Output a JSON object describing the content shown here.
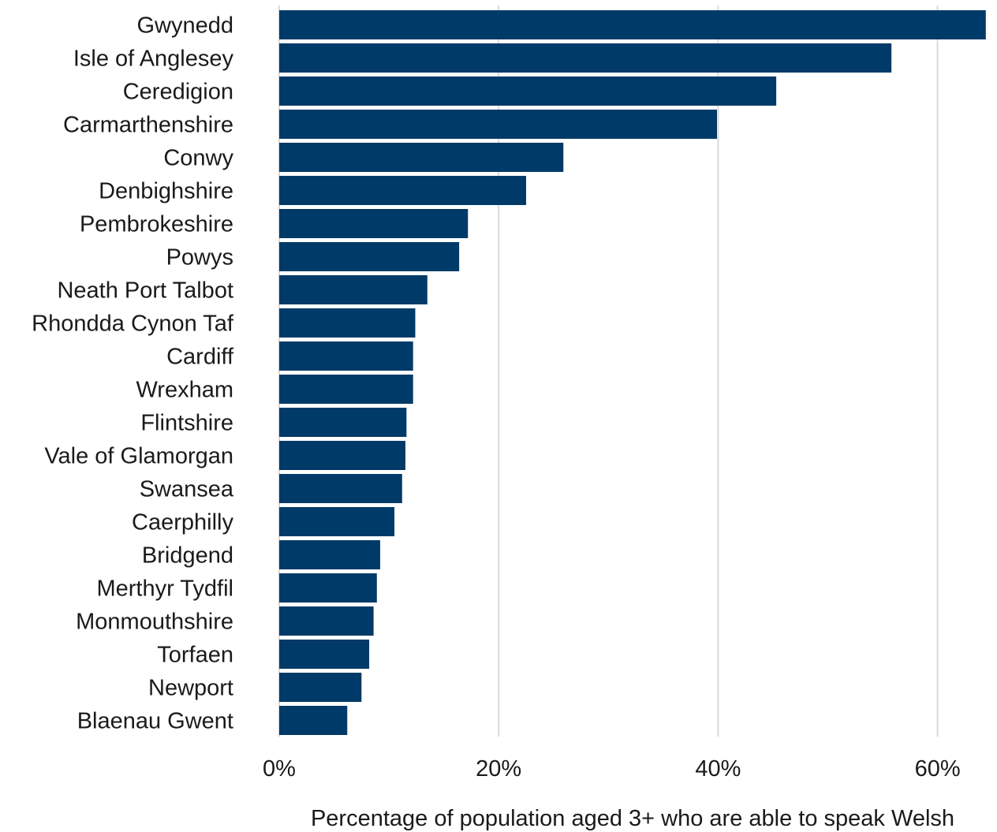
{
  "chart_data": {
    "type": "bar",
    "orientation": "horizontal",
    "categories": [
      "Gwynedd",
      "Isle of Anglesey",
      "Ceredigion",
      "Carmarthenshire",
      "Conwy",
      "Denbighshire",
      "Pembrokeshire",
      "Powys",
      "Neath Port Talbot",
      "Rhondda Cynon Taf",
      "Cardiff",
      "Wrexham",
      "Flintshire",
      "Vale of Glamorgan",
      "Swansea",
      "Caerphilly",
      "Bridgend",
      "Merthyr Tydfil",
      "Monmouthshire",
      "Torfaen",
      "Newport",
      "Blaenau Gwent"
    ],
    "values": [
      64.4,
      55.8,
      45.3,
      39.9,
      25.9,
      22.5,
      17.2,
      16.4,
      13.5,
      12.4,
      12.2,
      12.2,
      11.6,
      11.5,
      11.2,
      10.5,
      9.2,
      8.9,
      8.6,
      8.2,
      7.5,
      6.2
    ],
    "xlabel": "Percentage of population aged 3+ who are able to speak Welsh",
    "ylabel": "",
    "title": "",
    "xlim": [
      0,
      65
    ],
    "xticks": [
      0,
      20,
      40,
      60
    ],
    "xtick_labels": [
      "0%",
      "20%",
      "40%",
      "60%"
    ],
    "grid": "vertical",
    "legend": "none",
    "bar_color": "#003a68"
  }
}
